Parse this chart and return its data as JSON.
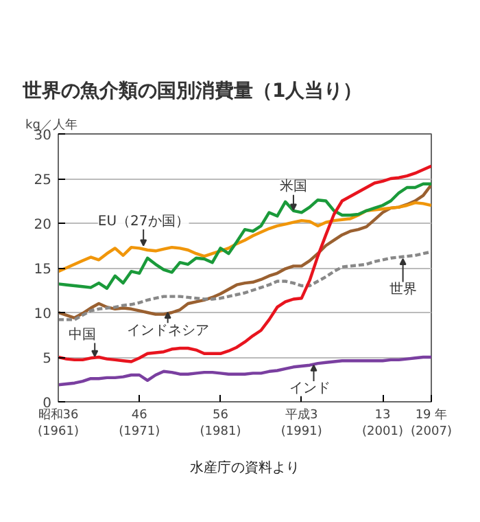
{
  "chart_data": {
    "type": "line",
    "title": "世界の魚介類の国別消費量（1人当り）",
    "ylabel": "kg／人年",
    "categories": [
      "昭和36\n(1961)",
      null,
      null,
      null,
      null,
      null,
      null,
      null,
      null,
      null,
      "46\n(1971)",
      null,
      null,
      null,
      null,
      null,
      null,
      null,
      null,
      null,
      "56\n(1981)",
      null,
      null,
      null,
      null,
      null,
      null,
      null,
      null,
      null,
      "平成3\n(1991)",
      null,
      null,
      null,
      null,
      null,
      null,
      null,
      null,
      null,
      "13\n(2001)",
      null,
      null,
      null,
      null,
      null,
      "19 年\n(2007)"
    ],
    "ylim": [
      0,
      30
    ],
    "yticks": [
      0,
      5,
      10,
      15,
      20,
      25,
      30
    ],
    "grid": "y",
    "marker": "none",
    "series": [
      {
        "color": "#9a6030",
        "line_style": "solid",
        "values": [
          10.0,
          9.7,
          9.4,
          9.9,
          10.5,
          11.0,
          10.6,
          10.4,
          10.5,
          10.4,
          10.2,
          10.0,
          9.8,
          9.8,
          10.0,
          10.3,
          11.0,
          11.2,
          11.4,
          11.7,
          12.1,
          12.6,
          13.1,
          13.3,
          13.4,
          13.7,
          14.1,
          14.4,
          14.9,
          15.2,
          15.2,
          15.8,
          16.6,
          17.5,
          18.1,
          18.7,
          19.1,
          19.3,
          19.6,
          20.4,
          21.2,
          21.7,
          21.8,
          22.1,
          22.5,
          23.1,
          24.3
        ]
      },
      {
        "color": "#888888",
        "line_style": "dashed",
        "values": [
          9.2,
          9.2,
          9.2,
          9.7,
          10.2,
          10.4,
          10.5,
          10.6,
          10.8,
          10.9,
          11.1,
          11.4,
          11.6,
          11.8,
          11.8,
          11.8,
          11.7,
          11.6,
          11.5,
          11.5,
          11.6,
          11.8,
          12.0,
          12.2,
          12.5,
          12.8,
          13.1,
          13.5,
          13.5,
          13.3,
          13.0,
          13.0,
          13.5,
          14.0,
          14.6,
          15.1,
          15.2,
          15.3,
          15.4,
          15.7,
          15.9,
          16.1,
          16.2,
          16.3,
          16.4,
          16.6,
          16.8
        ]
      },
      {
        "color": "#f0960a",
        "line_style": "solid",
        "values": [
          14.6,
          15.0,
          15.4,
          15.8,
          16.2,
          15.9,
          16.6,
          17.2,
          16.4,
          17.3,
          17.2,
          17.0,
          16.9,
          17.1,
          17.3,
          17.2,
          17.0,
          16.6,
          16.3,
          16.6,
          16.9,
          17.2,
          17.7,
          18.1,
          18.6,
          19.0,
          19.4,
          19.7,
          19.9,
          20.1,
          20.3,
          20.2,
          19.7,
          20.1,
          20.3,
          20.4,
          20.5,
          20.9,
          21.4,
          21.5,
          21.6,
          21.7,
          21.8,
          22.0,
          22.3,
          22.2,
          22.0
        ]
      },
      {
        "color": "#1a9a3a",
        "line_style": "solid",
        "values": [
          13.2,
          13.1,
          13.0,
          12.9,
          12.8,
          13.3,
          12.7,
          14.1,
          13.3,
          14.6,
          14.4,
          16.1,
          15.4,
          14.8,
          14.5,
          15.6,
          15.4,
          16.1,
          16.0,
          15.6,
          17.2,
          16.6,
          17.9,
          19.3,
          19.1,
          19.7,
          21.2,
          20.8,
          22.4,
          21.4,
          21.2,
          21.8,
          22.6,
          22.5,
          21.4,
          20.9,
          20.9,
          21.0,
          21.4,
          21.7,
          22.0,
          22.5,
          23.4,
          24.0,
          24.0,
          24.4,
          24.4
        ]
      },
      {
        "color": "#e8141e",
        "line_style": "solid",
        "values": [
          5.0,
          4.8,
          4.7,
          4.7,
          4.9,
          5.0,
          4.8,
          4.7,
          4.6,
          4.5,
          4.9,
          5.4,
          5.5,
          5.6,
          5.9,
          6.0,
          6.0,
          5.8,
          5.4,
          5.4,
          5.4,
          5.7,
          6.1,
          6.7,
          7.4,
          8.0,
          9.2,
          10.6,
          11.2,
          11.5,
          11.6,
          13.6,
          16.3,
          18.7,
          21.0,
          22.5,
          23.0,
          23.5,
          24.0,
          24.5,
          24.7,
          25.0,
          25.1,
          25.3,
          25.6,
          26.0,
          26.4
        ]
      },
      {
        "color": "#7a3fa0",
        "line_style": "solid",
        "values": [
          1.9,
          2.0,
          2.1,
          2.3,
          2.6,
          2.6,
          2.7,
          2.7,
          2.8,
          3.0,
          3.0,
          2.4,
          3.0,
          3.4,
          3.3,
          3.1,
          3.1,
          3.2,
          3.3,
          3.3,
          3.2,
          3.1,
          3.1,
          3.1,
          3.2,
          3.2,
          3.4,
          3.5,
          3.7,
          3.9,
          4.0,
          4.1,
          4.3,
          4.4,
          4.5,
          4.6,
          4.6,
          4.6,
          4.6,
          4.6,
          4.6,
          4.7,
          4.7,
          4.8,
          4.9,
          5.0,
          5.0
        ]
      }
    ],
    "annotations": [
      "EU（27か国）",
      "米国",
      "中国",
      "インドネシア",
      "世界",
      "インド",
      "水産庁の資料より"
    ]
  }
}
